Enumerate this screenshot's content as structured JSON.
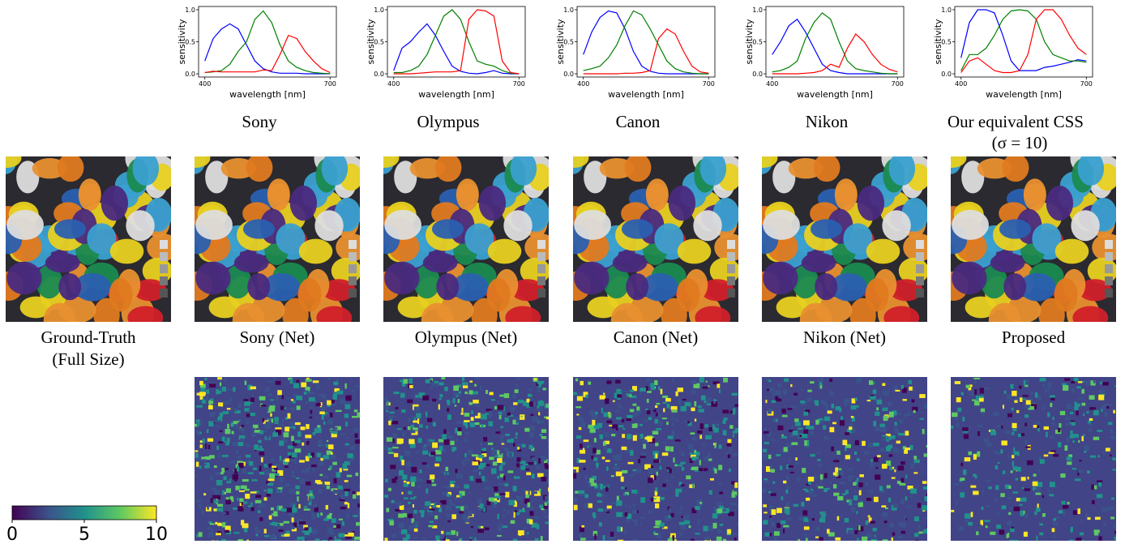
{
  "chart_data": [
    {
      "type": "line",
      "xlabel": "wavelength [nm]",
      "ylabel": "sensitivity",
      "x": [
        400,
        420,
        440,
        460,
        480,
        500,
        520,
        540,
        560,
        580,
        600,
        620,
        640,
        660,
        680,
        700
      ],
      "xlim": [
        385,
        715
      ],
      "xticks": [
        400,
        700
      ],
      "ylim": [
        -0.05,
        1.05
      ],
      "yticks": [
        {
          "value": 0,
          "label": "0.0"
        },
        {
          "value": 0.5,
          "label": "0.5"
        },
        {
          "value": 1,
          "label": "1.0"
        }
      ],
      "series": [
        {
          "color": "#0000ff",
          "values": [
            0.2,
            0.55,
            0.7,
            0.78,
            0.7,
            0.45,
            0.2,
            0.08,
            0.03,
            0.01,
            0.01,
            0.01,
            0,
            0,
            0,
            0
          ]
        },
        {
          "color": "#008000",
          "values": [
            0.02,
            0.03,
            0.05,
            0.15,
            0.35,
            0.5,
            0.85,
            0.98,
            0.8,
            0.45,
            0.2,
            0.1,
            0.05,
            0.02,
            0.01,
            0
          ]
        },
        {
          "color": "#ff0000",
          "values": [
            0.02,
            0.04,
            0.03,
            0.03,
            0.03,
            0.03,
            0.03,
            0.06,
            0.05,
            0.3,
            0.6,
            0.55,
            0.35,
            0.2,
            0.08,
            0.02
          ]
        }
      ]
    },
    {
      "type": "line",
      "xlabel": "wavelength [nm]",
      "ylabel": "sensitivity",
      "x": [
        400,
        420,
        440,
        460,
        480,
        500,
        520,
        540,
        560,
        580,
        600,
        620,
        640,
        660,
        680,
        700
      ],
      "xlim": [
        385,
        715
      ],
      "xticks": [
        400,
        700
      ],
      "ylim": [
        -0.05,
        1.05
      ],
      "yticks": [
        {
          "value": 0,
          "label": "0.0"
        },
        {
          "value": 0.5,
          "label": "0.5"
        },
        {
          "value": 1,
          "label": "1.0"
        }
      ],
      "series": [
        {
          "color": "#0000ff",
          "values": [
            0.05,
            0.4,
            0.5,
            0.65,
            0.78,
            0.6,
            0.35,
            0.12,
            0.04,
            0.01,
            0,
            0.02,
            0.05,
            0.01,
            0,
            0
          ]
        },
        {
          "color": "#008000",
          "values": [
            0.02,
            0.02,
            0.05,
            0.12,
            0.3,
            0.6,
            0.9,
            1.0,
            0.85,
            0.5,
            0.2,
            0.15,
            0.12,
            0.05,
            0.01,
            0
          ]
        },
        {
          "color": "#ff0000",
          "values": [
            0,
            0,
            0,
            0.01,
            0.02,
            0.03,
            0.03,
            0.03,
            0.05,
            0.85,
            1.0,
            0.98,
            0.9,
            0.2,
            0.02,
            0
          ]
        }
      ]
    },
    {
      "type": "line",
      "xlabel": "wavelength [nm]",
      "ylabel": "sensitivity",
      "x": [
        400,
        420,
        440,
        460,
        480,
        500,
        520,
        540,
        560,
        580,
        600,
        620,
        640,
        660,
        680,
        700
      ],
      "xlim": [
        385,
        715
      ],
      "xticks": [
        400,
        700
      ],
      "ylim": [
        -0.05,
        1.05
      ],
      "yticks": [
        {
          "value": 0,
          "label": "0.0"
        },
        {
          "value": 0.5,
          "label": "0.5"
        },
        {
          "value": 1,
          "label": "1.0"
        }
      ],
      "series": [
        {
          "color": "#0000ff",
          "values": [
            0.3,
            0.65,
            0.88,
            0.98,
            0.95,
            0.7,
            0.35,
            0.12,
            0.04,
            0.01,
            0,
            0,
            0,
            0,
            0,
            0
          ]
        },
        {
          "color": "#008000",
          "values": [
            0.05,
            0.08,
            0.12,
            0.25,
            0.45,
            0.75,
            0.98,
            0.92,
            0.7,
            0.45,
            0.2,
            0.08,
            0.03,
            0.01,
            0,
            0
          ]
        },
        {
          "color": "#ff0000",
          "values": [
            0,
            0,
            0,
            0,
            0,
            0.01,
            0.01,
            0.02,
            0.05,
            0.55,
            0.7,
            0.62,
            0.35,
            0.12,
            0.03,
            0.01
          ]
        }
      ]
    },
    {
      "type": "line",
      "xlabel": "wavelength [nm]",
      "ylabel": "sensitivity",
      "x": [
        400,
        420,
        440,
        460,
        480,
        500,
        520,
        540,
        560,
        580,
        600,
        620,
        640,
        660,
        680,
        700
      ],
      "xlim": [
        385,
        715
      ],
      "xticks": [
        400,
        700
      ],
      "ylim": [
        -0.05,
        1.05
      ],
      "yticks": [
        {
          "value": 0,
          "label": "0.0"
        },
        {
          "value": 0.5,
          "label": "0.5"
        },
        {
          "value": 1,
          "label": "1.0"
        }
      ],
      "series": [
        {
          "color": "#0000ff",
          "values": [
            0.3,
            0.5,
            0.75,
            0.85,
            0.65,
            0.4,
            0.15,
            0.05,
            0.02,
            0,
            0,
            0,
            0,
            0,
            0,
            0
          ]
        },
        {
          "color": "#008000",
          "values": [
            0.03,
            0.05,
            0.1,
            0.2,
            0.55,
            0.8,
            0.95,
            0.85,
            0.5,
            0.2,
            0.08,
            0.05,
            0.03,
            0.01,
            0,
            0
          ]
        },
        {
          "color": "#ff0000",
          "values": [
            0,
            0,
            0,
            0,
            0.01,
            0.02,
            0.05,
            0.15,
            0.1,
            0.4,
            0.62,
            0.5,
            0.3,
            0.15,
            0.07,
            0.03
          ]
        }
      ]
    },
    {
      "type": "line",
      "xlabel": "wavelength [nm]",
      "ylabel": "sensitivity",
      "x": [
        400,
        420,
        440,
        460,
        480,
        500,
        520,
        540,
        560,
        580,
        600,
        620,
        640,
        660,
        680,
        700
      ],
      "xlim": [
        385,
        715
      ],
      "xticks": [
        400,
        700
      ],
      "ylim": [
        -0.05,
        1.05
      ],
      "yticks": [
        {
          "value": 0,
          "label": "0.0"
        },
        {
          "value": 0.5,
          "label": "0.5"
        },
        {
          "value": 1,
          "label": "1.0"
        }
      ],
      "series": [
        {
          "color": "#0000ff",
          "values": [
            0.25,
            0.8,
            1.0,
            1.0,
            0.95,
            0.6,
            0.2,
            0.05,
            0.05,
            0.05,
            0.1,
            0.12,
            0.15,
            0.18,
            0.22,
            0.2
          ]
        },
        {
          "color": "#008000",
          "values": [
            0.05,
            0.3,
            0.3,
            0.4,
            0.6,
            0.85,
            0.98,
            1.0,
            0.98,
            0.85,
            0.5,
            0.3,
            0.25,
            0.2,
            0.2,
            0.18
          ]
        },
        {
          "color": "#ff0000",
          "values": [
            0.02,
            0.2,
            0.25,
            0.15,
            0.05,
            0.02,
            0.02,
            0.05,
            0.3,
            0.85,
            1.0,
            1.0,
            0.85,
            0.6,
            0.4,
            0.3
          ]
        }
      ]
    }
  ],
  "captions": {
    "cameras": [
      [
        "Sony"
      ],
      [
        "Olympus"
      ],
      [
        "Canon"
      ],
      [
        "Nikon"
      ],
      [
        "Our equivalent CSS",
        "(σ = 10)"
      ]
    ],
    "images": [
      [
        "Ground-Truth",
        "(Full Size)"
      ],
      [
        "Sony (Net)"
      ],
      [
        "Olympus (Net)"
      ],
      [
        "Canon (Net)"
      ],
      [
        "Nikon (Net)"
      ],
      [
        "Proposed"
      ]
    ]
  },
  "colorbar": {
    "lim": [
      0,
      10
    ],
    "ticks": [
      0,
      5,
      10
    ]
  }
}
